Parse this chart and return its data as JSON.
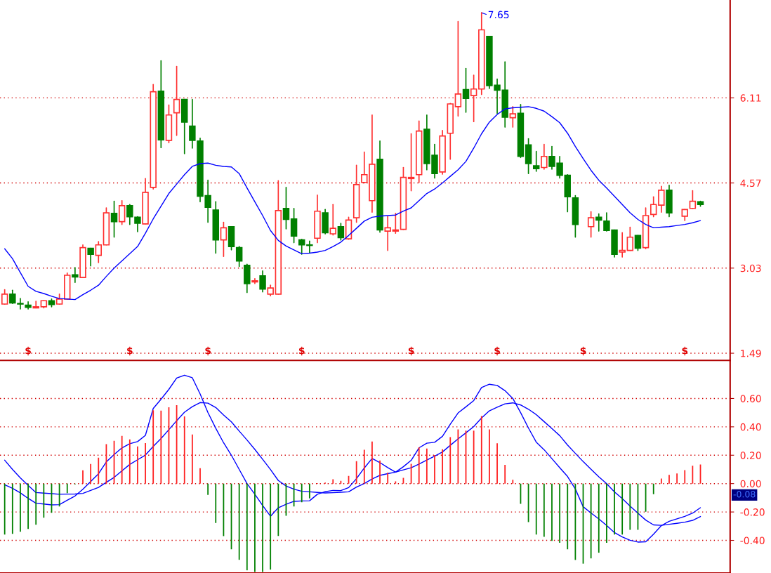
{
  "chart_data": [
    {
      "type": "candlestick",
      "categories": [
        null,
        null,
        null,
        null,
        null,
        null,
        null,
        null,
        null,
        null,
        null,
        null,
        null,
        null,
        null,
        null,
        null,
        null,
        null,
        null,
        null,
        null,
        null,
        null,
        null,
        null,
        null,
        null,
        null,
        null,
        null,
        null,
        null,
        null,
        null,
        null,
        null,
        null,
        null,
        null,
        null,
        null,
        null,
        null,
        null,
        null,
        null,
        null,
        null,
        null,
        null,
        null,
        null,
        null,
        null,
        null,
        null,
        null,
        null,
        null,
        null,
        null,
        null,
        null,
        null,
        null,
        null,
        null,
        null,
        null,
        null,
        null,
        null,
        null,
        null,
        null,
        null,
        null,
        null,
        null,
        null,
        null,
        null,
        null,
        null,
        null,
        null,
        null,
        null,
        null
      ],
      "ohlc": [
        [
          2.38,
          2.64,
          2.38,
          2.56
        ],
        [
          2.56,
          2.63,
          2.39,
          2.4
        ],
        [
          2.39,
          2.48,
          2.29,
          2.38
        ],
        [
          2.36,
          2.42,
          2.29,
          2.32
        ],
        [
          2.31,
          2.43,
          2.31,
          2.33
        ],
        [
          2.33,
          2.44,
          2.31,
          2.44
        ],
        [
          2.44,
          2.47,
          2.33,
          2.37
        ],
        [
          2.38,
          2.56,
          2.38,
          2.47
        ],
        [
          2.47,
          2.94,
          2.47,
          2.9
        ],
        [
          2.91,
          3.04,
          2.77,
          2.87
        ],
        [
          2.86,
          3.45,
          2.86,
          3.4
        ],
        [
          3.39,
          3.39,
          3.07,
          3.28
        ],
        [
          3.26,
          3.51,
          3.13,
          3.45
        ],
        [
          3.45,
          4.12,
          3.45,
          4.03
        ],
        [
          4.02,
          4.24,
          3.59,
          3.87
        ],
        [
          3.87,
          4.25,
          3.82,
          4.16
        ],
        [
          4.16,
          4.18,
          3.82,
          3.96
        ],
        [
          3.95,
          3.96,
          3.69,
          3.84
        ],
        [
          3.83,
          4.65,
          3.83,
          4.4
        ],
        [
          4.49,
          6.35,
          4.46,
          6.22
        ],
        [
          6.23,
          6.78,
          5.21,
          5.35
        ],
        [
          5.34,
          5.98,
          5.3,
          5.8
        ],
        [
          5.84,
          6.68,
          5.43,
          6.08
        ],
        [
          6.08,
          6.08,
          5.1,
          5.67
        ],
        [
          5.6,
          6.08,
          5.2,
          5.34
        ],
        [
          5.33,
          5.38,
          4.23,
          4.33
        ],
        [
          4.34,
          4.62,
          3.86,
          4.13
        ],
        [
          4.08,
          4.23,
          3.3,
          3.54
        ],
        [
          3.54,
          3.86,
          3.24,
          3.76
        ],
        [
          3.78,
          3.78,
          3.36,
          3.42
        ],
        [
          3.4,
          3.42,
          3.06,
          3.16
        ],
        [
          3.08,
          3.1,
          2.59,
          2.75
        ],
        [
          2.78,
          2.84,
          2.75,
          2.8
        ],
        [
          2.89,
          2.98,
          2.6,
          2.65
        ],
        [
          2.56,
          2.72,
          2.53,
          2.67
        ],
        [
          2.56,
          4.61,
          2.56,
          4.07
        ],
        [
          4.11,
          4.49,
          3.74,
          3.91
        ],
        [
          3.92,
          4.11,
          3.49,
          3.61
        ],
        [
          3.54,
          3.55,
          3.28,
          3.45
        ],
        [
          3.45,
          3.52,
          3.31,
          3.44
        ],
        [
          3.57,
          4.35,
          3.49,
          4.06
        ],
        [
          4.03,
          4.09,
          3.65,
          3.67
        ],
        [
          3.65,
          4.18,
          3.63,
          3.75
        ],
        [
          3.78,
          3.84,
          3.54,
          3.58
        ],
        [
          3.56,
          3.95,
          3.55,
          3.9
        ],
        [
          3.94,
          4.89,
          3.86,
          4.54
        ],
        [
          4.58,
          5.13,
          4.57,
          4.72
        ],
        [
          4.25,
          5.8,
          4.04,
          4.91
        ],
        [
          5.0,
          5.33,
          3.68,
          3.72
        ],
        [
          3.7,
          3.96,
          3.35,
          3.76
        ],
        [
          3.7,
          4.02,
          3.66,
          3.72
        ],
        [
          3.73,
          4.85,
          3.73,
          4.67
        ],
        [
          4.65,
          5.46,
          4.43,
          4.67
        ],
        [
          4.72,
          5.69,
          4.58,
          5.51
        ],
        [
          5.54,
          5.8,
          4.81,
          4.92
        ],
        [
          5.07,
          5.27,
          4.66,
          4.74
        ],
        [
          4.77,
          5.52,
          4.73,
          5.42
        ],
        [
          5.47,
          6.01,
          5.0,
          6.0
        ],
        [
          5.95,
          7.49,
          5.78,
          6.18
        ],
        [
          6.26,
          6.64,
          5.85,
          6.1
        ],
        [
          6.15,
          6.52,
          5.68,
          6.27
        ],
        [
          6.27,
          7.65,
          6.17,
          7.34
        ],
        [
          7.22,
          7.22,
          6.28,
          6.33
        ],
        [
          6.34,
          6.45,
          5.83,
          6.25
        ],
        [
          6.25,
          6.76,
          5.58,
          5.76
        ],
        [
          5.75,
          5.95,
          5.58,
          5.82
        ],
        [
          5.83,
          5.99,
          5.03,
          5.05
        ],
        [
          5.26,
          5.37,
          4.74,
          4.92
        ],
        [
          4.88,
          5.14,
          4.78,
          4.83
        ],
        [
          4.85,
          5.27,
          4.82,
          5.05
        ],
        [
          5.05,
          5.23,
          4.82,
          4.87
        ],
        [
          4.93,
          5.05,
          4.66,
          4.71
        ],
        [
          4.71,
          4.72,
          4.05,
          4.32
        ],
        [
          4.3,
          4.34,
          3.59,
          3.82
        ],
        null,
        [
          3.78,
          4.05,
          3.59,
          3.94
        ],
        [
          3.95,
          4.01,
          3.7,
          3.9
        ],
        [
          3.88,
          4.03,
          3.7,
          3.71
        ],
        [
          3.72,
          3.72,
          3.23,
          3.28
        ],
        [
          3.32,
          3.67,
          3.23,
          3.35
        ],
        [
          3.35,
          3.77,
          3.35,
          3.59
        ],
        [
          3.62,
          3.62,
          3.35,
          3.39
        ],
        [
          3.4,
          4.12,
          3.38,
          3.98
        ],
        [
          4.0,
          4.32,
          3.96,
          4.18
        ],
        [
          4.17,
          4.51,
          4.04,
          4.44
        ],
        [
          4.44,
          4.53,
          3.96,
          4.03
        ],
        null,
        [
          3.97,
          4.09,
          3.89,
          4.09
        ],
        [
          4.11,
          4.43,
          4.11,
          4.24
        ],
        [
          4.23,
          4.24,
          4.15,
          4.18
        ]
      ],
      "colors": [
        "#ff3030",
        "#008000",
        "#008000",
        "#008000",
        "#ff3030",
        "#ff3030",
        "#008000",
        "#ff3030",
        "#ff3030",
        "#008000",
        "#ff3030",
        "#008000",
        "#ff3030",
        "#ff3030",
        "#008000",
        "#ff3030",
        "#008000",
        "#008000",
        "#ff3030",
        "#ff3030",
        "#008000",
        "#ff3030",
        "#ff3030",
        "#008000",
        "#008000",
        "#008000",
        "#008000",
        "#008000",
        "#ff3030",
        "#008000",
        "#008000",
        "#008000",
        "#ff3030",
        "#008000",
        "#ff3030",
        "#ff3030",
        "#008000",
        "#008000",
        "#008000",
        "#008000",
        "#ff3030",
        "#008000",
        "#ff3030",
        "#008000",
        "#ff3030",
        "#ff3030",
        "#ff3030",
        "#ff3030",
        "#008000",
        "#ff3030",
        "#ff3030",
        "#ff3030",
        "#ff3030",
        "#ff3030",
        "#008000",
        "#008000",
        "#ff3030",
        "#ff3030",
        "#ff3030",
        "#008000",
        "#ff3030",
        "#ff3030",
        "#008000",
        "#008000",
        "#008000",
        "#ff3030",
        "#008000",
        "#008000",
        "#008000",
        "#ff3030",
        "#008000",
        "#008000",
        "#008000",
        "#008000",
        null,
        "#ff3030",
        "#008000",
        "#008000",
        "#008000",
        "#ff3030",
        "#ff3030",
        "#008000",
        "#ff3030",
        "#ff3030",
        "#ff3030",
        "#008000",
        null,
        "#ff3030",
        "#ff3030",
        "#008000"
      ],
      "series": [
        {
          "type": "line",
          "color": "#0000ff",
          "values": [
            3.38,
            3.2,
            2.95,
            2.7,
            2.61,
            2.57,
            2.52,
            2.48,
            2.47,
            2.46,
            2.55,
            2.63,
            2.72,
            2.88,
            3.03,
            3.16,
            3.29,
            3.42,
            3.66,
            3.92,
            4.15,
            4.38,
            4.55,
            4.72,
            4.87,
            4.92,
            4.93,
            4.89,
            4.87,
            4.86,
            4.74,
            4.48,
            4.23,
            3.98,
            3.71,
            3.53,
            3.43,
            3.36,
            3.29,
            3.3,
            3.32,
            3.35,
            3.42,
            3.5,
            3.62,
            3.75,
            3.88,
            3.95,
            3.97,
            3.98,
            3.99,
            4.06,
            4.12,
            4.25,
            4.38,
            4.46,
            4.57,
            4.69,
            4.81,
            4.96,
            5.2,
            5.46,
            5.67,
            5.81,
            5.91,
            5.93,
            5.94,
            5.95,
            5.92,
            5.87,
            5.77,
            5.66,
            5.47,
            5.23,
            5.01,
            4.8,
            4.62,
            4.48,
            4.33,
            4.18,
            4.03,
            3.91,
            3.82,
            3.76,
            3.77,
            3.78,
            3.8,
            3.82,
            3.85,
            3.89
          ]
        }
      ],
      "ylim": [
        1.36,
        7.88
      ],
      "yticks": [
        1.49,
        3.03,
        4.57,
        6.11
      ],
      "grid": "y",
      "tick_labels": "y",
      "annotations": [
        "7.65",
        "$",
        "$",
        "$",
        "$",
        "$",
        "$",
        "$",
        "$"
      ]
    },
    {
      "type": "bar",
      "categories": [
        null,
        null,
        null,
        null,
        null,
        null,
        null,
        null,
        null,
        null,
        null,
        null,
        null,
        null,
        null,
        null,
        null,
        null,
        null,
        null,
        null,
        null,
        null,
        null,
        null,
        null,
        null,
        null,
        null,
        null,
        null,
        null,
        null,
        null,
        null,
        null,
        null,
        null,
        null,
        null,
        null,
        null,
        null,
        null,
        null,
        null,
        null,
        null,
        null,
        null,
        null,
        null,
        null,
        null,
        null,
        null,
        null,
        null,
        null,
        null,
        null,
        null,
        null,
        null,
        null,
        null,
        null,
        null,
        null,
        null,
        null,
        null,
        null,
        null,
        null,
        null,
        null,
        null,
        null,
        null,
        null,
        null,
        null,
        null,
        null,
        null,
        null,
        null,
        null,
        null
      ],
      "values": [
        -0.359,
        -0.354,
        -0.339,
        -0.319,
        -0.29,
        -0.24,
        -0.206,
        -0.161,
        -0.067,
        -0.005,
        0.094,
        0.138,
        0.183,
        0.278,
        0.301,
        0.336,
        0.311,
        0.262,
        0.286,
        0.517,
        0.514,
        0.538,
        0.553,
        0.474,
        0.346,
        0.109,
        -0.079,
        -0.277,
        -0.37,
        -0.463,
        -0.537,
        -0.611,
        -0.622,
        -0.622,
        -0.606,
        -0.369,
        -0.227,
        -0.161,
        -0.132,
        -0.104,
        0.003,
        0.007,
        0.031,
        0.02,
        0.054,
        0.158,
        0.238,
        0.296,
        0.163,
        0.077,
        0.016,
        0.04,
        0.139,
        0.256,
        0.247,
        0.201,
        0.242,
        0.328,
        0.382,
        0.373,
        0.373,
        0.476,
        0.382,
        0.284,
        0.132,
        0.027,
        -0.143,
        -0.271,
        -0.359,
        -0.375,
        -0.403,
        -0.417,
        -0.463,
        -0.538,
        -0.564,
        -0.527,
        -0.487,
        -0.417,
        -0.359,
        -0.359,
        -0.326,
        -0.326,
        -0.198,
        -0.075,
        0.035,
        0.062,
        0.071,
        0.095,
        0.126,
        0.135
      ],
      "colors": [
        "#008000",
        "#008000",
        "#008000",
        "#008000",
        "#008000",
        "#008000",
        "#008000",
        "#008000",
        "#008000",
        "#008000",
        "#ff2020",
        "#ff2020",
        "#ff2020",
        "#ff2020",
        "#ff2020",
        "#ff2020",
        "#ff2020",
        "#ff2020",
        "#ff2020",
        "#ff2020",
        "#ff2020",
        "#ff2020",
        "#ff2020",
        "#ff2020",
        "#ff2020",
        "#ff2020",
        "#008000",
        "#008000",
        "#008000",
        "#008000",
        "#008000",
        "#008000",
        "#008000",
        "#008000",
        "#008000",
        "#008000",
        "#008000",
        "#008000",
        "#008000",
        "#008000",
        "#ff2020",
        "#ff2020",
        "#ff2020",
        "#ff2020",
        "#ff2020",
        "#ff2020",
        "#ff2020",
        "#ff2020",
        "#ff2020",
        "#ff2020",
        "#ff2020",
        "#ff2020",
        "#ff2020",
        "#ff2020",
        "#ff2020",
        "#ff2020",
        "#ff2020",
        "#ff2020",
        "#ff2020",
        "#ff2020",
        "#ff2020",
        "#ff2020",
        "#ff2020",
        "#ff2020",
        "#ff2020",
        "#ff2020",
        "#008000",
        "#008000",
        "#008000",
        "#008000",
        "#008000",
        "#008000",
        "#008000",
        "#008000",
        "#008000",
        "#008000",
        "#008000",
        "#008000",
        "#008000",
        "#008000",
        "#008000",
        "#008000",
        "#008000",
        "#008000",
        "#ff2020",
        "#ff2020",
        "#ff2020",
        "#ff2020",
        "#ff2020",
        "#ff2020"
      ],
      "series": [
        {
          "type": "line",
          "color": "#0000ff",
          "values": [
            -0.008,
            -0.033,
            -0.065,
            -0.104,
            -0.138,
            -0.144,
            -0.15,
            -0.148,
            -0.117,
            -0.087,
            -0.04,
            0.015,
            0.069,
            0.153,
            0.205,
            0.252,
            0.281,
            0.296,
            0.34,
            0.529,
            0.595,
            0.664,
            0.744,
            0.764,
            0.746,
            0.632,
            0.501,
            0.39,
            0.288,
            0.2,
            0.1,
            0.0,
            -0.075,
            -0.154,
            -0.23,
            -0.17,
            -0.146,
            -0.125,
            -0.122,
            -0.121,
            -0.075,
            -0.057,
            -0.048,
            -0.049,
            -0.028,
            0.035,
            0.11,
            0.177,
            0.148,
            0.113,
            0.081,
            0.119,
            0.164,
            0.252,
            0.285,
            0.291,
            0.333,
            0.418,
            0.498,
            0.541,
            0.585,
            0.677,
            0.7,
            0.692,
            0.655,
            0.6,
            0.5,
            0.392,
            0.292,
            0.239,
            0.176,
            0.112,
            0.05,
            -0.038,
            -0.163,
            -0.207,
            -0.249,
            -0.295,
            -0.345,
            -0.376,
            -0.399,
            -0.412,
            -0.41,
            -0.357,
            -0.296,
            -0.266,
            -0.248,
            -0.231,
            -0.208,
            -0.17
          ]
        },
        {
          "type": "line",
          "color": "#0000ff",
          "values": [
            0.165,
            0.1,
            0.041,
            -0.013,
            -0.063,
            -0.067,
            -0.071,
            -0.075,
            -0.074,
            -0.073,
            -0.069,
            -0.048,
            -0.027,
            0.009,
            0.044,
            0.09,
            0.135,
            0.168,
            0.201,
            0.262,
            0.318,
            0.38,
            0.443,
            0.503,
            0.542,
            0.571,
            0.567,
            0.536,
            0.483,
            0.435,
            0.37,
            0.307,
            0.241,
            0.171,
            0.099,
            0.022,
            -0.017,
            -0.039,
            -0.054,
            -0.058,
            -0.062,
            -0.066,
            -0.064,
            -0.061,
            -0.058,
            -0.024,
            0.0,
            0.032,
            0.058,
            0.07,
            0.081,
            0.097,
            0.112,
            0.138,
            0.166,
            0.193,
            0.223,
            0.27,
            0.315,
            0.358,
            0.402,
            0.462,
            0.513,
            0.538,
            0.562,
            0.569,
            0.554,
            0.524,
            0.486,
            0.437,
            0.388,
            0.338,
            0.272,
            0.213,
            0.155,
            0.101,
            0.048,
            0.0,
            -0.058,
            -0.105,
            -0.159,
            -0.208,
            -0.257,
            -0.291,
            -0.294,
            -0.287,
            -0.28,
            -0.272,
            -0.259,
            -0.232
          ]
        }
      ],
      "ylim": [
        -0.63,
        0.86
      ],
      "yticks": [
        {
          "value": 0.6,
          "label": "0.60"
        },
        {
          "value": 0.4,
          "label": "0.40"
        },
        {
          "value": 0.2,
          "label": "0.20"
        },
        {
          "value": 0.0,
          "label": "0.00"
        },
        {
          "value": -0.2,
          "label": "-0.20"
        },
        {
          "value": -0.4,
          "label": "-0.40"
        }
      ],
      "grid": "y",
      "tick_labels": "y",
      "annotations": [
        "-0.08"
      ]
    }
  ]
}
